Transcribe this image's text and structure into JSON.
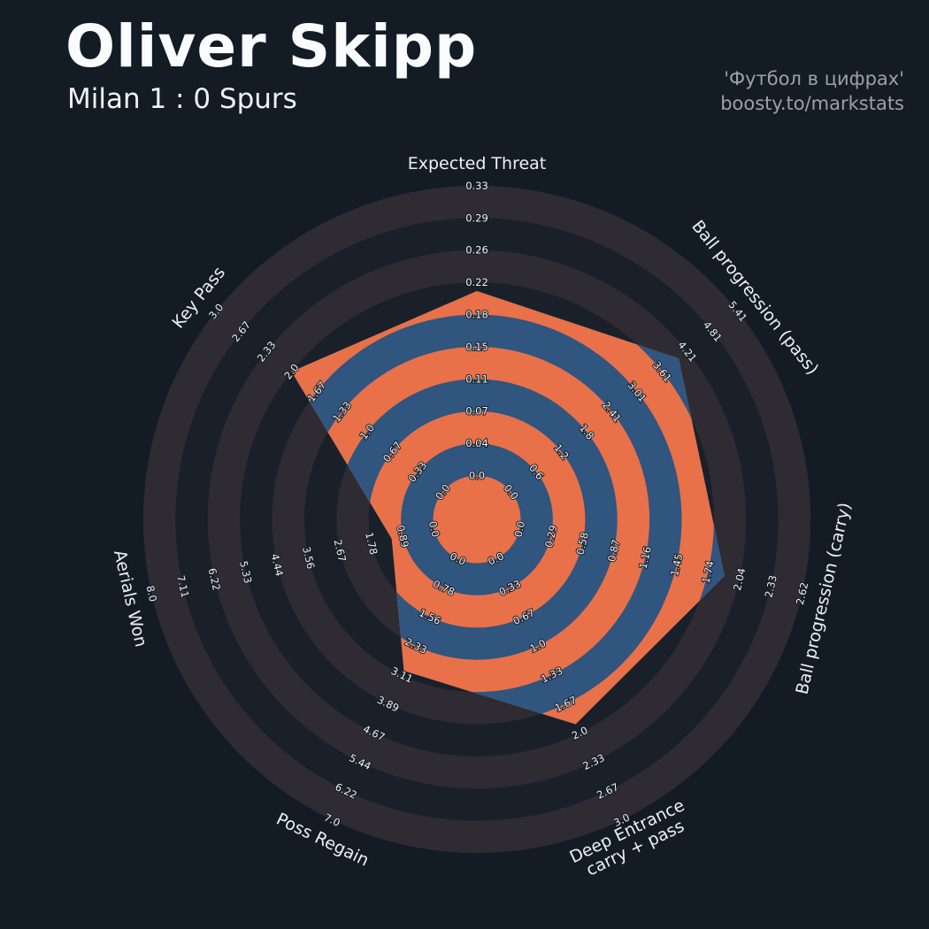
{
  "header": {
    "title": "Oliver Skipp",
    "subtitle": "Milan 1 : 0 Spurs",
    "credit_line1": "'Футбол в цифрах'",
    "credit_line2": "boosty.to/markstats"
  },
  "chart_data": {
    "type": "radar",
    "title": "Oliver Skipp",
    "subtitle": "Milan 1 : 0 Spurs",
    "rings": 9,
    "start_axis": "top",
    "direction": "clockwise",
    "axes": [
      {
        "label": "Expected Threat",
        "label_lines": [
          "Expected Threat"
        ],
        "min": 0.0,
        "max": 0.33,
        "value": 0.21,
        "ticks": [
          "0.0",
          "0.04",
          "0.07",
          "0.11",
          "0.15",
          "0.18",
          "0.22",
          "0.26",
          "0.29",
          "0.33"
        ]
      },
      {
        "label": "Ball progression (pass)",
        "label_lines": [
          "Ball progression (pass)"
        ],
        "min": 0.0,
        "max": 5.41,
        "value": 4.0,
        "ticks": [
          "0.0",
          "0.6",
          "1.2",
          "1.8",
          "2.41",
          "3.01",
          "3.61",
          "4.21",
          "4.81",
          "5.41"
        ]
      },
      {
        "label": "Ball progression (carry)",
        "label_lines": [
          "Ball progression (carry)"
        ],
        "min": 0.0,
        "max": 2.62,
        "value": 1.9,
        "ticks": [
          "0.0",
          "0.29",
          "0.58",
          "0.87",
          "1.16",
          "1.45",
          "1.74",
          "2.04",
          "2.33",
          "2.62"
        ]
      },
      {
        "label": "Deep Entrance carry + pass",
        "label_lines": [
          "Deep Entrance",
          "carry + pass"
        ],
        "min": 0.0,
        "max": 3.0,
        "value": 1.9,
        "ticks": [
          "0.0",
          "0.33",
          "0.67",
          "1.0",
          "1.33",
          "1.67",
          "2.0",
          "2.33",
          "2.67",
          "3.0"
        ]
      },
      {
        "label": "Poss Regain",
        "label_lines": [
          "Poss Regain"
        ],
        "min": 0.0,
        "max": 7.0,
        "value": 3.0,
        "ticks": [
          "0.0",
          "0.78",
          "1.56",
          "2.33",
          "3.11",
          "3.89",
          "4.67",
          "5.44",
          "6.22",
          "7.0"
        ]
      },
      {
        "label": "Aerials Won",
        "label_lines": [
          "Aerials Won"
        ],
        "min": 0.0,
        "max": 8.0,
        "value": 1.2,
        "ticks": [
          "0.0",
          "0.89",
          "1.78",
          "2.67",
          "3.56",
          "4.44",
          "5.33",
          "6.22",
          "7.11",
          "8.0"
        ]
      },
      {
        "label": "Key Pass",
        "label_lines": [
          "Key Pass"
        ],
        "min": 0.0,
        "max": 3.0,
        "value": 2.0,
        "ticks": [
          "0.0",
          "0.33",
          "0.67",
          "1.0",
          "1.33",
          "1.67",
          "2.0",
          "2.33",
          "2.67",
          "3.0"
        ]
      }
    ],
    "colors": {
      "background": "#131b24",
      "ring_dark": "#19202a",
      "ring_light": "#2f2b33",
      "radar_blue": "#30557f",
      "radar_orange": "#e8714a",
      "tick_text": "#f2f3f4",
      "axis_text": "#eef0f2",
      "title_text": "#fafbfc",
      "credit_text": "#9aa1aa"
    }
  }
}
